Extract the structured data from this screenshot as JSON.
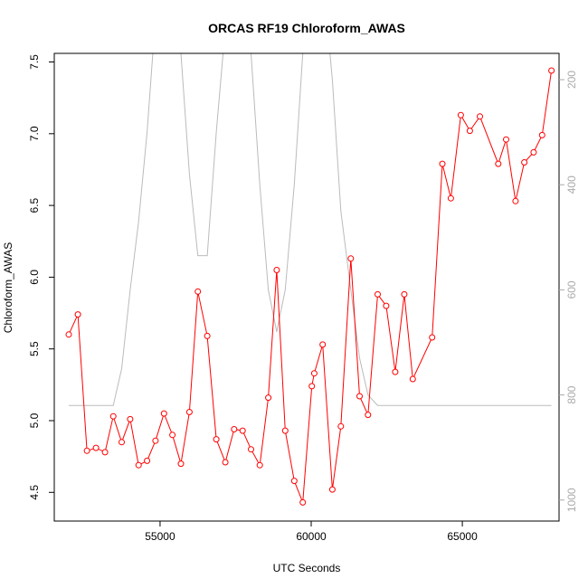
{
  "chart_data": {
    "type": "line",
    "title": "ORCAS RF19 Chloroform_AWAS",
    "xlabel": "UTC Seconds",
    "ylabel": "Chloroform_AWAS",
    "xlim": [
      51500,
      68200
    ],
    "ylim": [
      4.3,
      7.56
    ],
    "y2lim": [
      1040,
      150
    ],
    "x_ticks": [
      55000,
      60000,
      65000
    ],
    "y_ticks": [
      4.5,
      5.0,
      5.5,
      6.0,
      6.5,
      7.0,
      7.5
    ],
    "y2_ticks": [
      200,
      400,
      600,
      800,
      1000
    ],
    "series": [
      {
        "role": "primary",
        "color": "#ff0000",
        "marker": "open-circle",
        "x": [
          51980,
          52280,
          52580,
          52880,
          53180,
          53450,
          53730,
          54010,
          54290,
          54570,
          54850,
          55130,
          55410,
          55690,
          55970,
          56250,
          56560,
          56860,
          57160,
          57450,
          57730,
          58010,
          58300,
          58580,
          58860,
          59140,
          59440,
          59720,
          60020,
          60100,
          60380,
          60700,
          60980,
          61310,
          61600,
          61880,
          62200,
          62480,
          62780,
          63080,
          63360,
          64000,
          64340,
          64620,
          64950,
          65250,
          65580,
          66190,
          66450,
          66760,
          67050,
          67360,
          67640,
          67950
        ],
        "y": [
          5.6,
          5.74,
          4.79,
          4.81,
          4.78,
          5.03,
          4.85,
          5.01,
          4.69,
          4.72,
          4.86,
          5.05,
          4.9,
          4.7,
          5.06,
          5.9,
          5.59,
          4.87,
          4.71,
          4.94,
          4.93,
          4.8,
          4.69,
          5.16,
          6.05,
          4.93,
          4.58,
          4.43,
          5.24,
          5.33,
          5.53,
          4.52,
          4.96,
          6.13,
          5.17,
          5.04,
          5.88,
          5.8,
          5.34,
          5.88,
          5.29,
          5.58,
          6.79,
          6.55,
          7.13,
          7.02,
          7.12,
          6.79,
          6.96,
          6.53,
          6.8,
          6.87,
          6.99,
          7.44
        ]
      },
      {
        "role": "secondary",
        "color": "#bbbbbb",
        "axis": "right",
        "x": [
          51980,
          53450,
          53730,
          54010,
          54290,
          54570,
          54850,
          55130,
          55410,
          55690,
          55970,
          56250,
          56560,
          56860,
          57160,
          57450,
          57730,
          58010,
          58300,
          58580,
          58860,
          59140,
          59440,
          59720,
          60020,
          60380,
          60700,
          60980,
          61310,
          61600,
          61880,
          62200,
          62480,
          67950
        ],
        "y": [
          820,
          820,
          750,
          600,
          470,
          300,
          80,
          -100,
          0,
          150,
          380,
          535,
          535,
          300,
          100,
          -100,
          0,
          150,
          400,
          600,
          680,
          600,
          400,
          150,
          20,
          0,
          200,
          450,
          600,
          730,
          800,
          820,
          820,
          820
        ]
      }
    ]
  }
}
